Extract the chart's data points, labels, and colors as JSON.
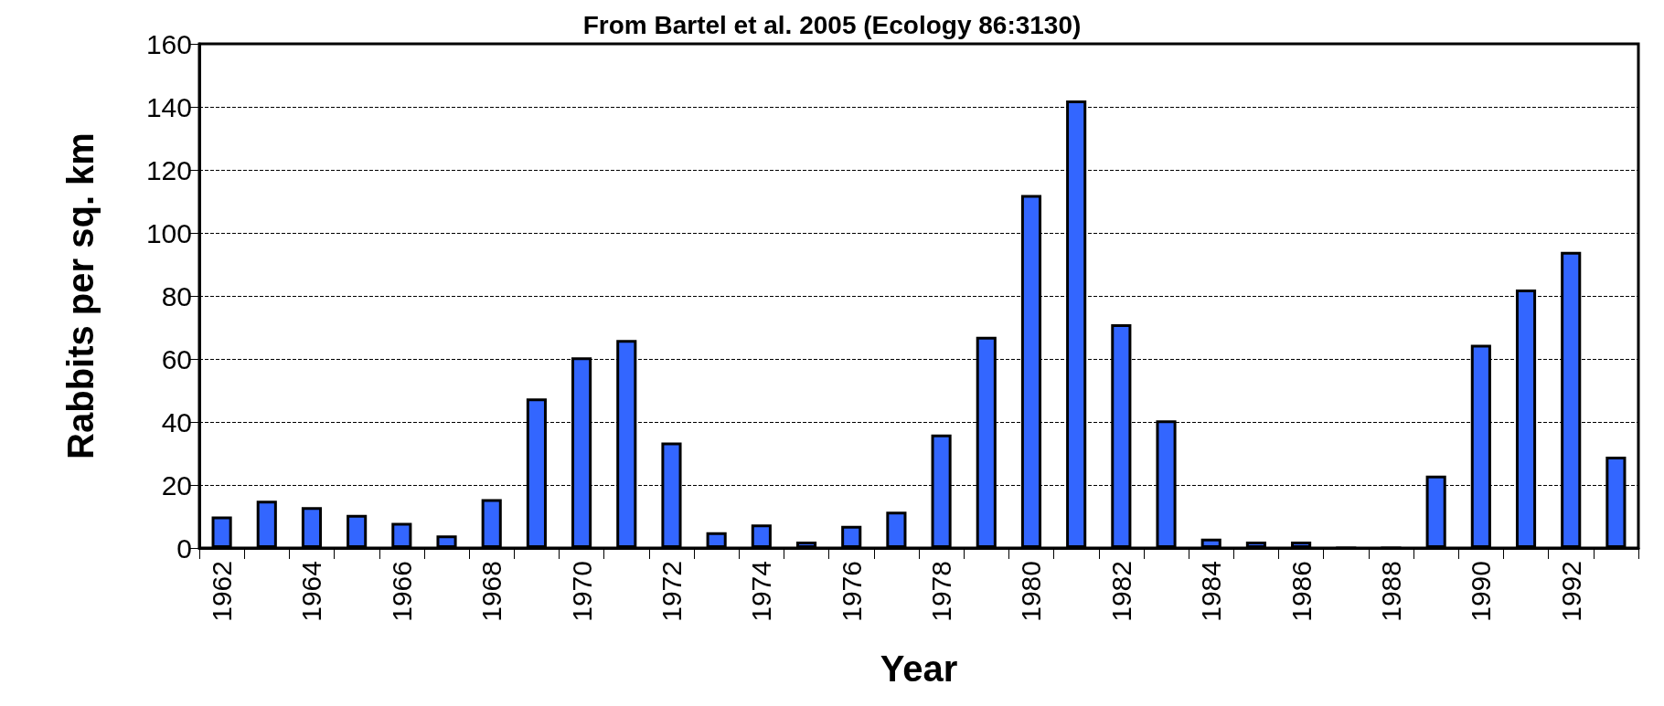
{
  "chart_data": {
    "type": "bar",
    "title": "From Bartel et al. 2005 (Ecology 86:3130)",
    "xlabel": "Year",
    "ylabel": "Rabbits per sq. km",
    "categories": [
      "1962",
      null,
      "1964",
      null,
      "1966",
      null,
      "1968",
      null,
      "1970",
      null,
      "1972",
      null,
      "1974",
      null,
      "1976",
      null,
      "1978",
      null,
      "1980",
      null,
      "1982",
      null,
      "1984",
      null,
      "1986",
      null,
      "1988",
      null,
      "1990",
      null,
      "1992",
      null
    ],
    "values": [
      10,
      15,
      13,
      10.5,
      8,
      4,
      15.5,
      47.5,
      60.5,
      66,
      33.5,
      5,
      7.5,
      2,
      7,
      11.5,
      36,
      67,
      112,
      142,
      71,
      40.5,
      3,
      2,
      2,
      0,
      0,
      23,
      64.5,
      82,
      94,
      29
    ],
    "color": "#3366ff",
    "ylim": [
      0,
      160
    ],
    "yticks": [
      0,
      20,
      40,
      60,
      80,
      100,
      120,
      140,
      160
    ],
    "grid": "y"
  }
}
